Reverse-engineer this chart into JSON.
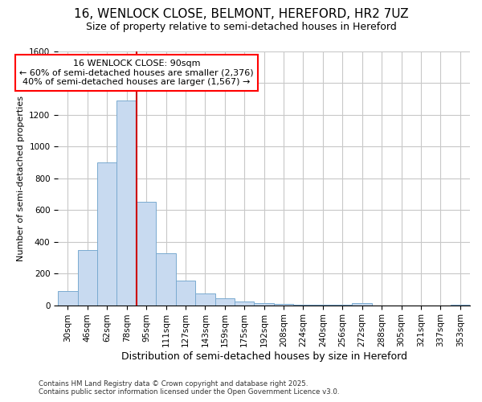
{
  "title": "16, WENLOCK CLOSE, BELMONT, HEREFORD, HR2 7UZ",
  "subtitle": "Size of property relative to semi-detached houses in Hereford",
  "xlabel": "Distribution of semi-detached houses by size in Hereford",
  "ylabel": "Number of semi-detached properties",
  "property_label": "16 WENLOCK CLOSE: 90sqm",
  "annotation_line1": "← 60% of semi-detached houses are smaller (2,376)",
  "annotation_line2": "40% of semi-detached houses are larger (1,567) →",
  "categories": [
    "30sqm",
    "46sqm",
    "62sqm",
    "78sqm",
    "95sqm",
    "111sqm",
    "127sqm",
    "143sqm",
    "159sqm",
    "175sqm",
    "192sqm",
    "208sqm",
    "224sqm",
    "240sqm",
    "256sqm",
    "272sqm",
    "288sqm",
    "305sqm",
    "321sqm",
    "337sqm",
    "353sqm"
  ],
  "values": [
    90,
    350,
    900,
    1290,
    650,
    330,
    155,
    75,
    45,
    25,
    15,
    8,
    5,
    3,
    2,
    15,
    0,
    0,
    0,
    0,
    5
  ],
  "bar_color": "#c8daf0",
  "bar_edge_color": "#7aaad0",
  "vline_color": "#cc0000",
  "vline_x": 4,
  "ylim": [
    0,
    1600
  ],
  "yticks": [
    0,
    200,
    400,
    600,
    800,
    1000,
    1200,
    1400,
    1600
  ],
  "footnote_line1": "Contains HM Land Registry data © Crown copyright and database right 2025.",
  "footnote_line2": "Contains public sector information licensed under the Open Government Licence v3.0.",
  "background_color": "#ffffff",
  "grid_color": "#c8c8c8",
  "title_fontsize": 11,
  "subtitle_fontsize": 9,
  "xlabel_fontsize": 9,
  "ylabel_fontsize": 8,
  "tick_fontsize": 7.5,
  "annot_fontsize": 8
}
